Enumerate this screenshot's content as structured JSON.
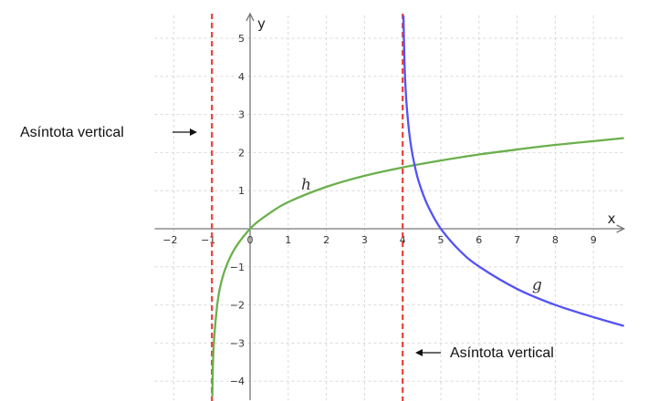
{
  "chart_data": {
    "type": "line",
    "title": "",
    "xlabel": "x",
    "ylabel": "y",
    "xlim": [
      -2.5,
      9.8
    ],
    "ylim": [
      -4.5,
      5.6
    ],
    "grid": true,
    "x_ticks": [
      -2,
      -1,
      0,
      1,
      2,
      3,
      4,
      5,
      6,
      7,
      8,
      9
    ],
    "y_ticks": [
      -4,
      -3,
      -2,
      -1,
      1,
      2,
      3,
      4,
      5
    ],
    "series": [
      {
        "name": "h",
        "color": "#6ab04c",
        "x": [
          -0.99,
          -0.95,
          -0.8,
          -0.5,
          0,
          0.5,
          1,
          2,
          3,
          4,
          5,
          6,
          7,
          8,
          9,
          9.8
        ],
        "y": [
          -4.4,
          -3.0,
          -1.6,
          -0.7,
          0,
          0.4,
          0.7,
          1.1,
          1.39,
          1.61,
          1.79,
          1.95,
          2.08,
          2.2,
          2.3,
          2.38
        ]
      },
      {
        "name": "g",
        "color": "#5353f5",
        "x": [
          4.02,
          4.05,
          4.1,
          4.2,
          4.35,
          4.5,
          4.7,
          5,
          5.5,
          6,
          7,
          8,
          9,
          9.8
        ],
        "y": [
          5.6,
          4.3,
          3.3,
          2.3,
          1.5,
          1.0,
          0.52,
          0,
          -0.58,
          -0.99,
          -1.58,
          -2.0,
          -2.32,
          -2.55
        ]
      }
    ],
    "asymptotes": [
      {
        "x": -1,
        "color": "#e8403a"
      },
      {
        "x": 4,
        "color": "#e8403a"
      }
    ],
    "annotations": [
      {
        "text": "Asíntota vertical",
        "arrow": "right",
        "target_asymptote": -1
      },
      {
        "text": "Asíntota vertical",
        "arrow": "left",
        "target_asymptote": 4
      }
    ]
  }
}
